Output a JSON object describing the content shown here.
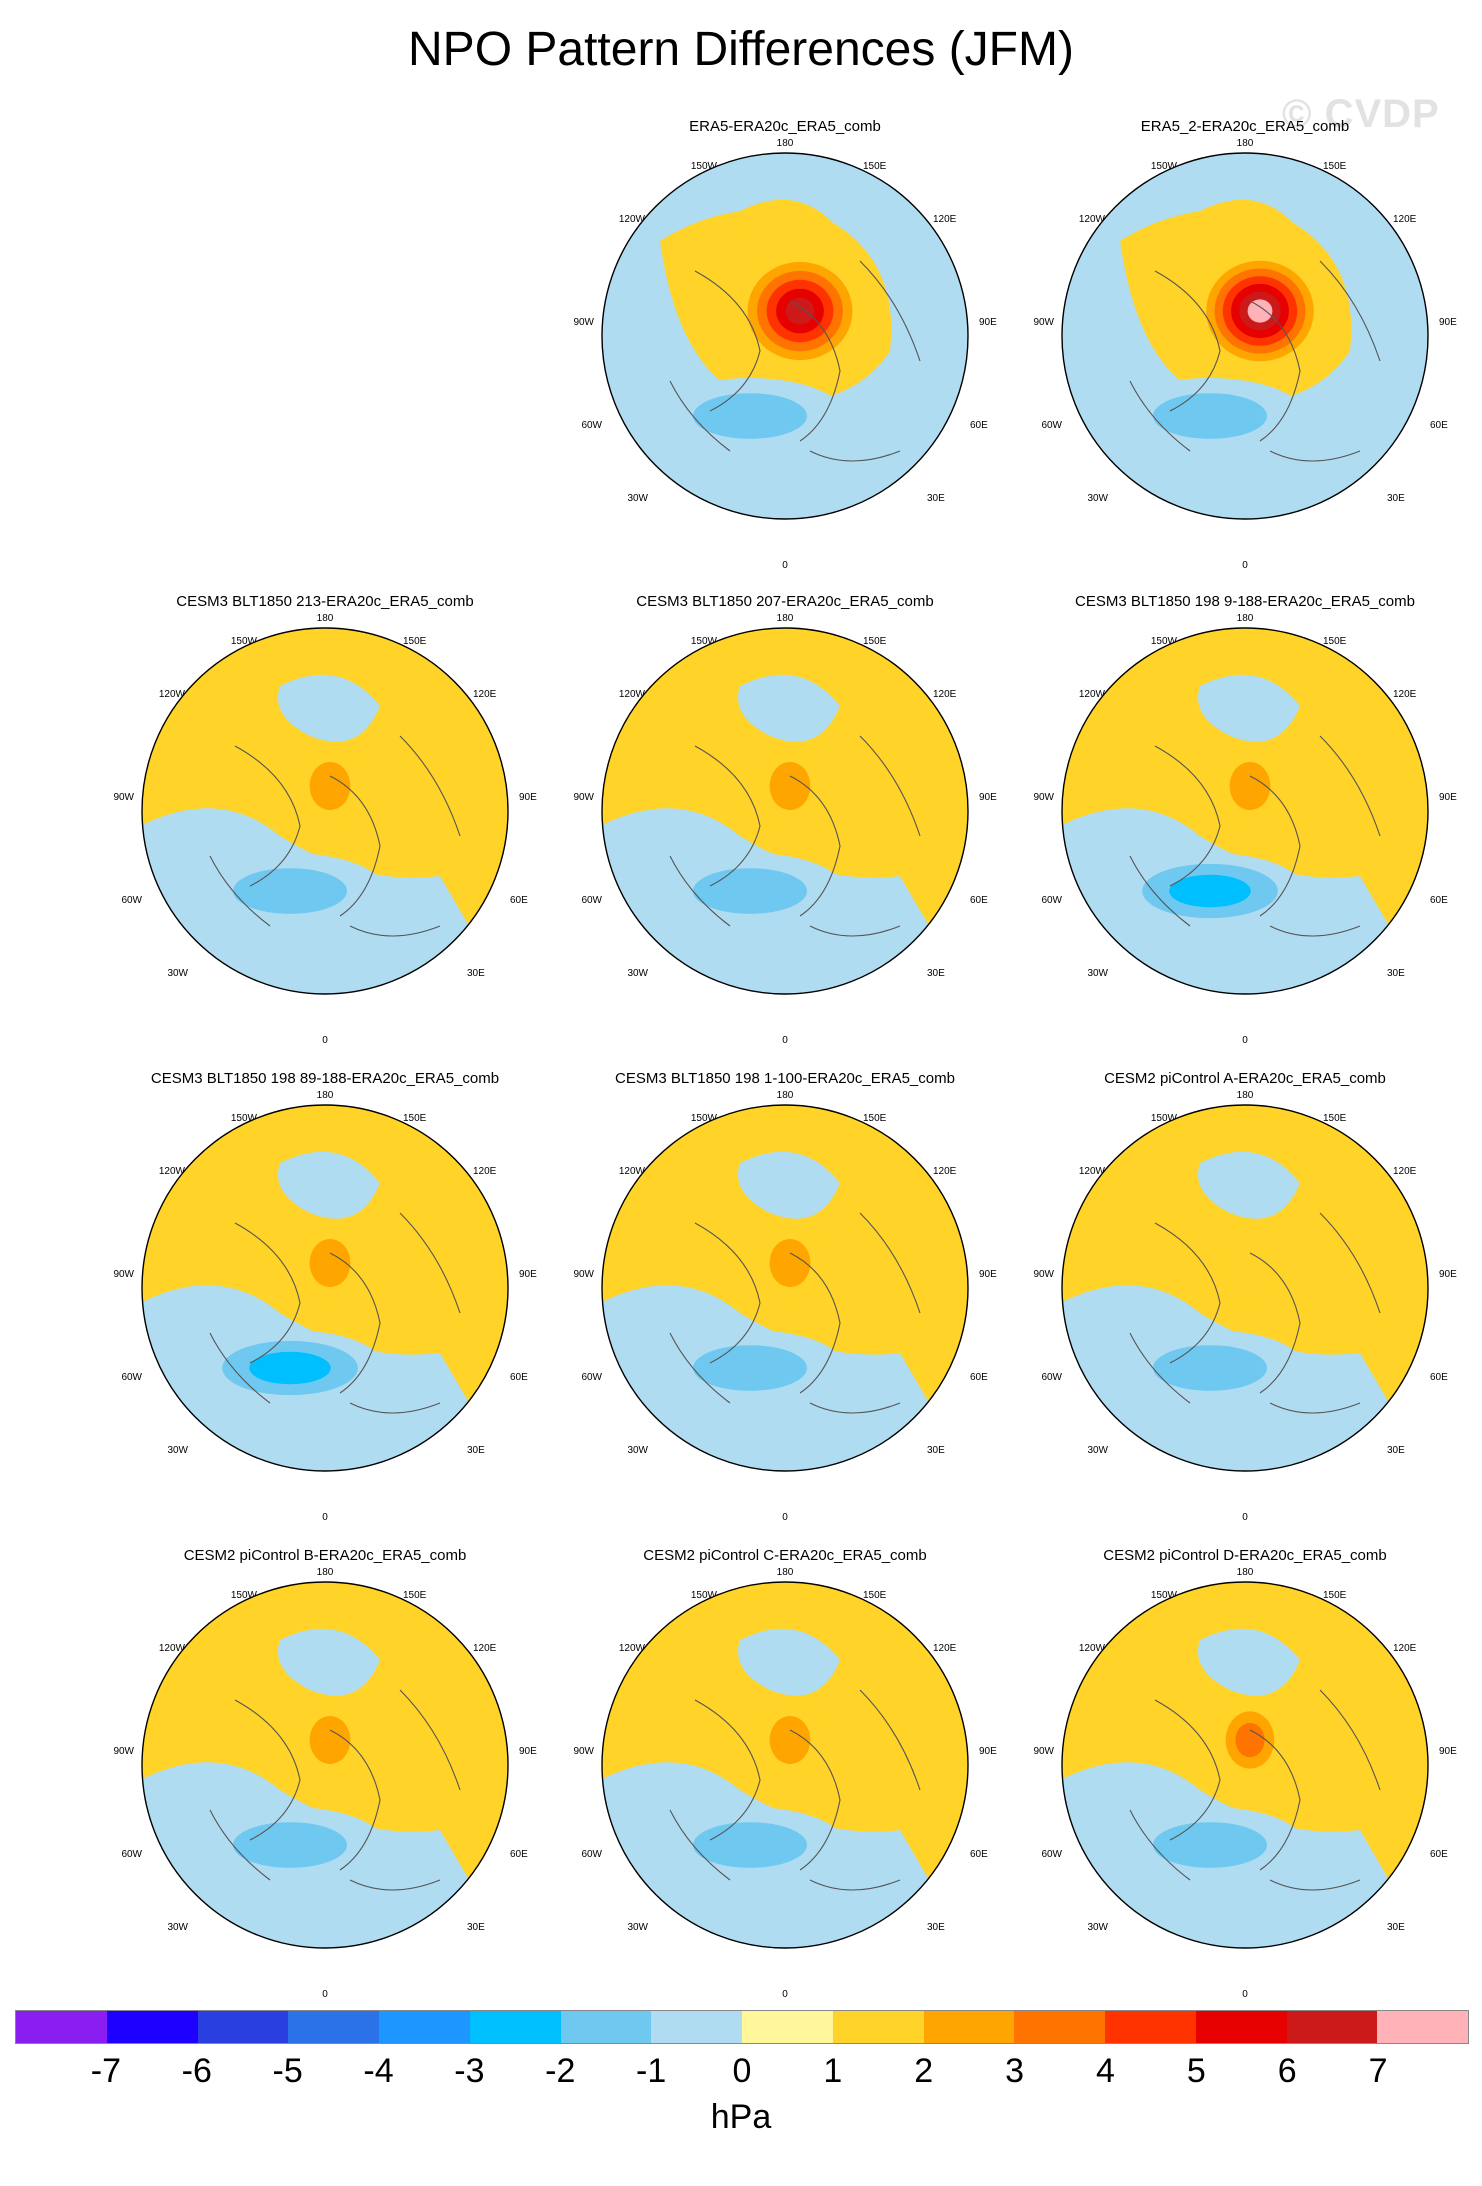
{
  "title": "NPO Pattern Differences (JFM)",
  "watermark": "© CVDP",
  "longitude_labels": {
    "top": "180",
    "bottom": "0",
    "left_upper": "150W",
    "right_upper": "150E",
    "left_mid_upper": "120W",
    "right_mid_upper": "120E",
    "left_mid": "90W",
    "right_mid": "90E",
    "left_mid_lower": "60W",
    "right_mid_lower": "60E",
    "left_lower": "30W",
    "right_lower": "30E"
  },
  "panels": [
    {
      "title": "ERA5-ERA20c_ERA5_comb",
      "peak_positive": 6,
      "peak_negative": -2
    },
    {
      "title": "ERA5_2-ERA20c_ERA5_comb",
      "peak_positive": 7,
      "peak_negative": -2
    },
    {
      "title": "CESM3 BLT1850 213-ERA20c_ERA5_comb",
      "peak_positive": 2,
      "peak_negative": -2
    },
    {
      "title": "CESM3 BLT1850 207-ERA20c_ERA5_comb",
      "peak_positive": 2,
      "peak_negative": -2
    },
    {
      "title": "CESM3 BLT1850 198 9-188-ERA20c_ERA5_comb",
      "peak_positive": 2,
      "peak_negative": -3
    },
    {
      "title": "CESM3 BLT1850 198 89-188-ERA20c_ERA5_comb",
      "peak_positive": 2,
      "peak_negative": -3
    },
    {
      "title": "CESM3 BLT1850 198 1-100-ERA20c_ERA5_comb",
      "peak_positive": 2,
      "peak_negative": -2
    },
    {
      "title": "CESM2 piControl A-ERA20c_ERA5_comb",
      "peak_positive": 1,
      "peak_negative": -2
    },
    {
      "title": "CESM2 piControl B-ERA20c_ERA5_comb",
      "peak_positive": 2,
      "peak_negative": -2
    },
    {
      "title": "CESM2 piControl C-ERA20c_ERA5_comb",
      "peak_positive": 2,
      "peak_negative": -2
    },
    {
      "title": "CESM2 piControl D-ERA20c_ERA5_comb",
      "peak_positive": 3,
      "peak_negative": -2
    }
  ],
  "colorbar": {
    "units": "hPa",
    "tick_labels": [
      "-7",
      "-6",
      "-5",
      "-4",
      "-3",
      "-2",
      "-1",
      "0",
      "1",
      "2",
      "3",
      "4",
      "5",
      "6",
      "7"
    ],
    "colors": [
      "#8a1ef0",
      "#1d00ff",
      "#2a3fe0",
      "#2b72e8",
      "#1e96ff",
      "#00bfff",
      "#6ec8f0",
      "#b0dcf1",
      "#fff799",
      "#ffd327",
      "#ffa500",
      "#ff7300",
      "#ff3300",
      "#e60000",
      "#cc1a1a",
      "#ffb3b8"
    ]
  }
}
